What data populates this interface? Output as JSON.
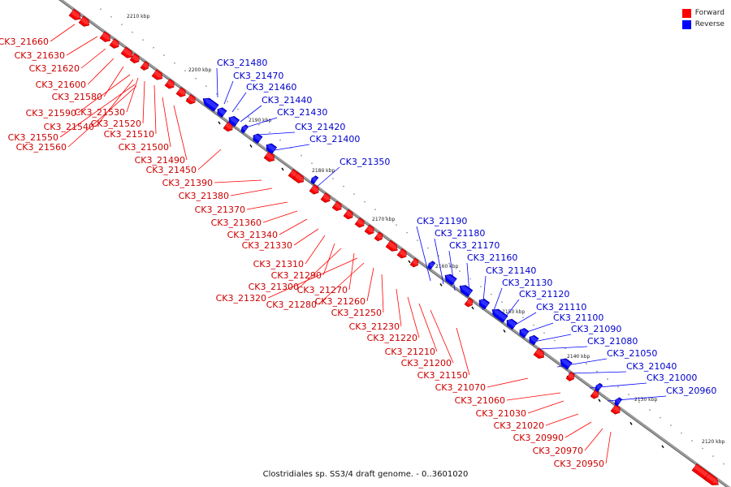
{
  "colors": {
    "forward": "#ff0000",
    "reverse": "#0000ff",
    "backbone": "#808080",
    "tick": "#000000"
  },
  "legend": {
    "forward": "Forward",
    "reverse": "Reverse"
  },
  "caption": "Clostridiales sp. SS3/4 draft genome. - 0..3601020",
  "ticks": [
    "2210 kbp",
    "2200 kbp",
    "2190 kbp",
    "2180 kbp",
    "2170 kbp",
    "2160 kbp",
    "2150 kbp",
    "2140 kbp",
    "2130 kbp",
    "2120 kbp"
  ],
  "forward_labels": [
    "CK3_21660",
    "CK3_21630",
    "CK3_21620",
    "CK3_21600",
    "CK3_21580",
    "CK3_21590",
    "CK3_21530",
    "CK3_21520",
    "CK3_21540",
    "CK3_21510",
    "CK3_21550",
    "CK3_21560",
    "CK3_21500",
    "CK3_21490",
    "CK3_21450",
    "CK3_21390",
    "CK3_21380",
    "CK3_21370",
    "CK3_21360",
    "CK3_21340",
    "CK3_21330",
    "CK3_21310",
    "CK3_21290",
    "CK3_21300",
    "CK3_21270",
    "CK3_21320",
    "CK3_21280",
    "CK3_21260",
    "CK3_21250",
    "CK3_21230",
    "CK3_21220",
    "CK3_21210",
    "CK3_21200",
    "CK3_21150",
    "CK3_21070",
    "CK3_21060",
    "CK3_21030",
    "CK3_21020",
    "CK3_20990",
    "CK3_20970",
    "CK3_20950"
  ],
  "reverse_labels": [
    "CK3_21480",
    "CK3_21470",
    "CK3_21460",
    "CK3_21440",
    "CK3_21430",
    "CK3_21420",
    "CK3_21400",
    "CK3_21350",
    "CK3_21190",
    "CK3_21180",
    "CK3_21170",
    "CK3_21160",
    "CK3_21140",
    "CK3_21130",
    "CK3_21120",
    "CK3_21110",
    "CK3_21100",
    "CK3_21090",
    "CK3_21080",
    "CK3_21050",
    "CK3_21040",
    "CK3_21000",
    "CK3_20960"
  ]
}
